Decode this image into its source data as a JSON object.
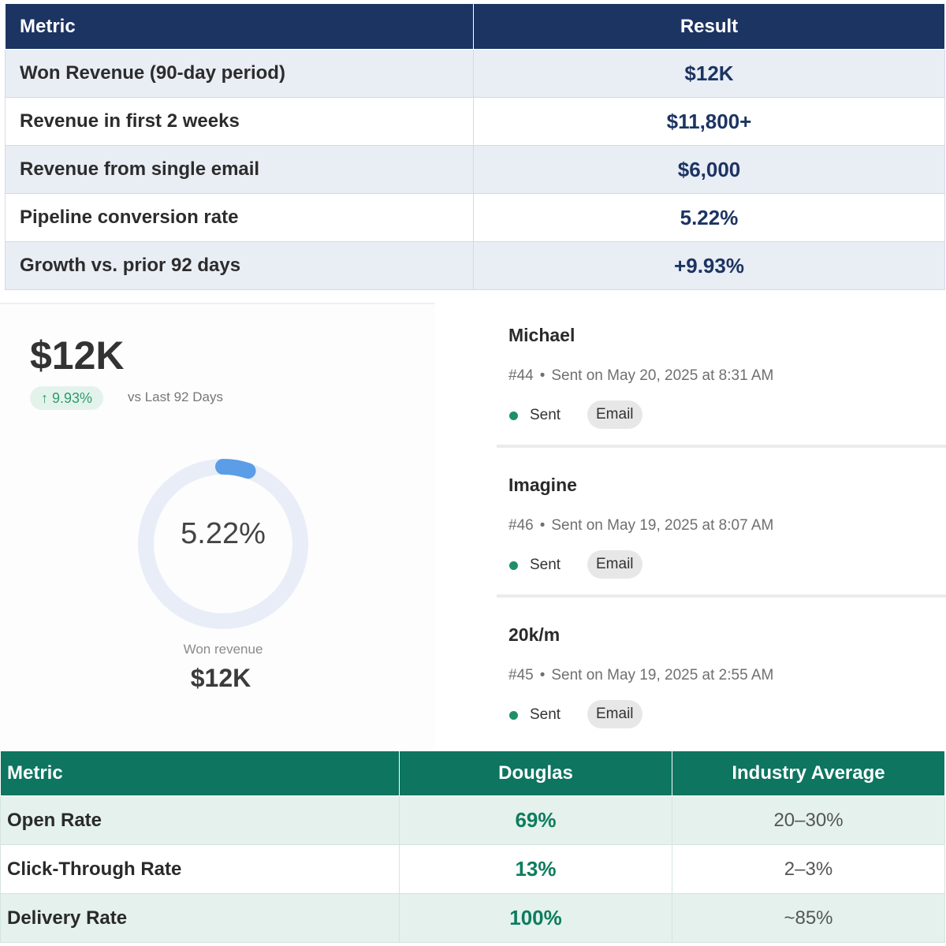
{
  "top_table": {
    "headers": {
      "metric": "Metric",
      "result": "Result"
    },
    "rows": [
      {
        "metric": "Won Revenue (90-day period)",
        "result": "$12K"
      },
      {
        "metric": "Revenue in first 2 weeks",
        "result": "$11,800+"
      },
      {
        "metric": "Revenue from single email",
        "result": "$6,000"
      },
      {
        "metric": "Pipeline conversion rate",
        "result": "5.22%"
      },
      {
        "metric": "Growth vs. prior 92 days",
        "result": "+9.93%"
      }
    ]
  },
  "revenue_card": {
    "amount": "$12K",
    "growth_badge": "↑ 9.93%",
    "growth_caption": "vs Last 92 Days",
    "donut": {
      "value_label": "5.22%",
      "value_fraction": 0.0522,
      "track_color": "#e8edf8",
      "fill_color": "#5b9de6"
    },
    "won_caption": "Won revenue",
    "won_amount": "$12K"
  },
  "emails": [
    {
      "name": "Michael",
      "number": "#44",
      "sent_on": "Sent on May 20, 2025 at 8:31 AM",
      "status": "Sent",
      "channel": "Email"
    },
    {
      "name": "Imagine",
      "number": "#46",
      "sent_on": "Sent on May 19, 2025 at 8:07 AM",
      "status": "Sent",
      "channel": "Email"
    },
    {
      "name": "20k/m",
      "number": "#45",
      "sent_on": "Sent on May 19, 2025 at 2:55 AM",
      "status": "Sent",
      "channel": "Email"
    }
  ],
  "bottom_table": {
    "headers": {
      "metric": "Metric",
      "douglas": "Douglas",
      "industry": "Industry Average"
    },
    "rows": [
      {
        "metric": "Open Rate",
        "douglas": "69%",
        "industry": "20–30%"
      },
      {
        "metric": "Click-Through Rate",
        "douglas": "13%",
        "industry": "2–3%"
      },
      {
        "metric": "Delivery Rate",
        "douglas": "100%",
        "industry": "~85%"
      }
    ]
  },
  "colors": {
    "top_header_bg": "#1c3462",
    "bottom_header_bg": "#0d7560",
    "status_green": "#1f8f6a"
  }
}
